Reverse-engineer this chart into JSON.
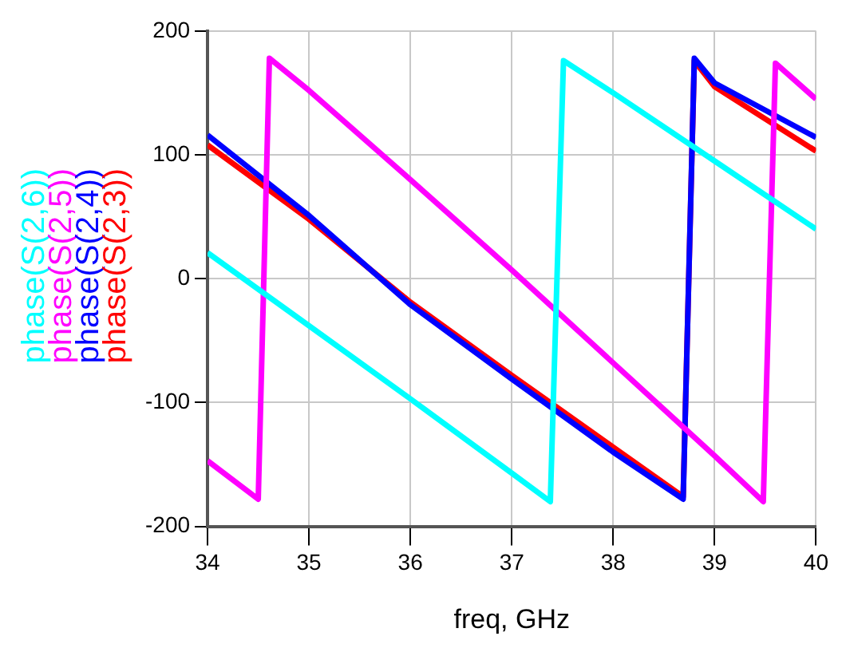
{
  "chart_data": {
    "type": "line",
    "xlabel": "freq, GHz",
    "xlim": [
      34,
      40
    ],
    "xticks": [
      34,
      35,
      36,
      37,
      38,
      39,
      40
    ],
    "ylim": [
      -200,
      200
    ],
    "yticks": [
      -200,
      -100,
      0,
      100,
      200
    ],
    "grid": true,
    "legend": "left",
    "marker": "none",
    "line_style": "solid",
    "series": [
      {
        "name": "phase(S(2,6))",
        "color": "#00ffff",
        "x": [
          34,
          35,
          36,
          37,
          37.38,
          37.51,
          38,
          39,
          40
        ],
        "values": [
          21,
          -38,
          -97,
          -157,
          -180,
          176,
          150,
          95,
          40
        ]
      },
      {
        "name": "phase(S(2,5))",
        "color": "#ff00ff",
        "x": [
          34,
          34.5,
          34.61,
          35,
          36,
          37,
          38,
          39,
          39.48,
          39.6,
          40
        ],
        "values": [
          -147,
          -178,
          178,
          152,
          80,
          7,
          -68,
          -143,
          -180,
          174,
          145
        ]
      },
      {
        "name": "phase(S(2,4))",
        "color": "#0000ff",
        "x": [
          34,
          35,
          36,
          37,
          38,
          38.69,
          38.8,
          39,
          40
        ],
        "values": [
          116,
          51,
          -21,
          -81,
          -140,
          -178,
          178,
          158,
          114
        ]
      },
      {
        "name": "phase(S(2,3))",
        "color": "#ff0000",
        "x": [
          34,
          35,
          36,
          37,
          38,
          38.69,
          38.8,
          39,
          40
        ],
        "values": [
          108,
          48,
          -19,
          -78,
          -136,
          -176,
          176,
          155,
          103
        ]
      }
    ]
  }
}
